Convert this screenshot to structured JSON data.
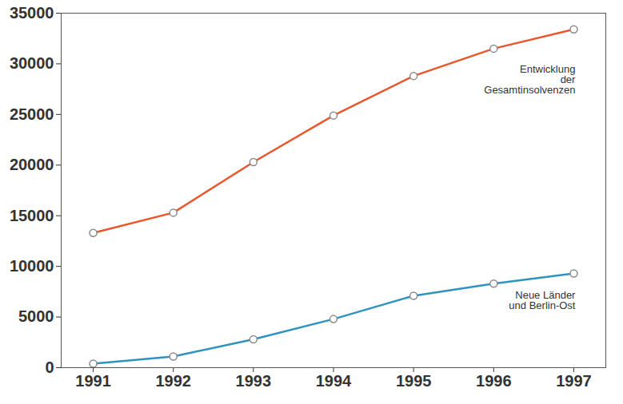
{
  "chart_data": {
    "type": "line",
    "x": [
      1991,
      1992,
      1993,
      1994,
      1995,
      1996,
      1997
    ],
    "series": [
      {
        "name": "Entwicklung der Gesamtinsolvenzen",
        "color": "#e8582c",
        "values": [
          13300,
          15300,
          20300,
          24900,
          28800,
          31500,
          33400
        ]
      },
      {
        "name": "Neue Länder und Berlin-Ost",
        "color": "#2f93bf",
        "values": [
          400,
          1100,
          2800,
          4800,
          7100,
          8300,
          9300
        ]
      }
    ],
    "xlim": [
      1990.6,
      1997.4
    ],
    "xticks": [
      1991,
      1992,
      1993,
      1994,
      1995,
      1996,
      1997
    ],
    "ylim": [
      0,
      35000
    ],
    "yticks": [
      0,
      5000,
      10000,
      15000,
      20000,
      25000,
      30000,
      35000
    ],
    "grid": false,
    "marker": "circle"
  }
}
